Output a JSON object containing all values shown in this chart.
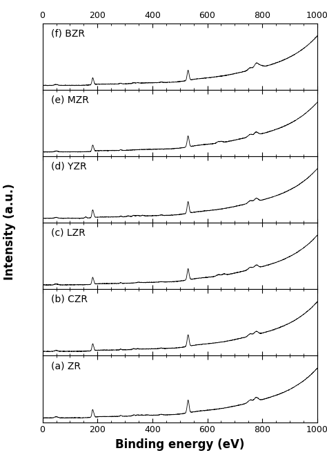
{
  "panels": [
    {
      "label": "(f) BZR",
      "id": "bzr"
    },
    {
      "label": "(e) MZR",
      "id": "mzr"
    },
    {
      "label": "(d) YZR",
      "id": "yzr"
    },
    {
      "label": "(c) LZR",
      "id": "lzr"
    },
    {
      "label": "(b) CZR",
      "id": "czr"
    },
    {
      "label": "(a) ZR",
      "id": "zr"
    }
  ],
  "xmin": 0,
  "xmax": 1000,
  "xlabel": "Binding energy (eV)",
  "ylabel": "Intensity (a.u.)",
  "figsize": [
    4.74,
    6.71
  ],
  "dpi": 100,
  "line_color": "#000000",
  "line_width": 0.6,
  "background_color": "#ffffff",
  "label_fontsize": 10,
  "axis_label_fontsize": 12,
  "tick_fontsize": 9
}
